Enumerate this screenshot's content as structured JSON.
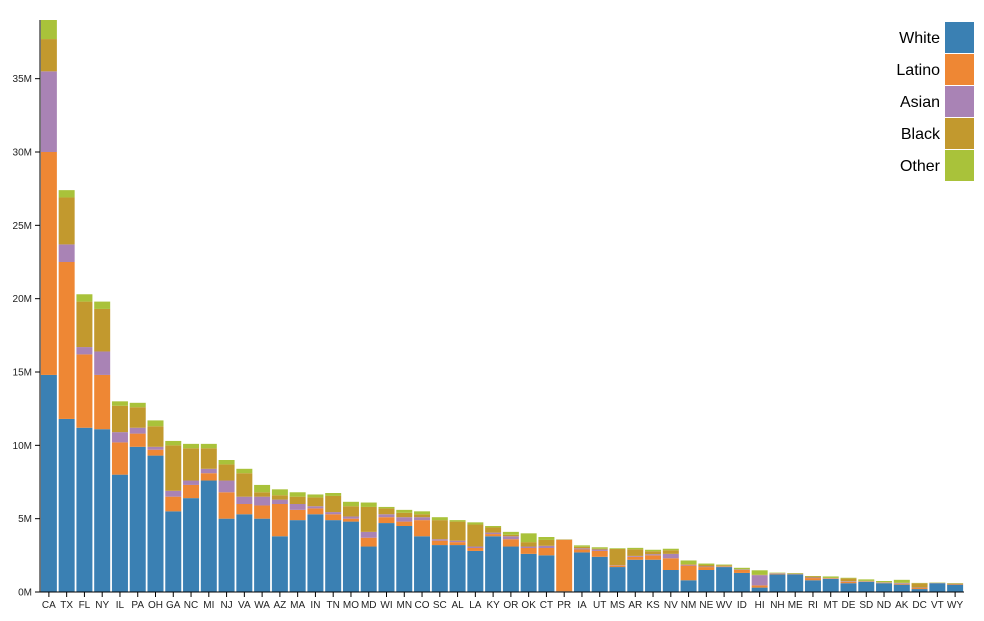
{
  "chart_data": {
    "type": "bar",
    "stacked": true,
    "title": "",
    "xlabel": "",
    "ylabel": "",
    "ylim": [
      0,
      39000000
    ],
    "y_ticks": [
      0,
      5000000,
      10000000,
      15000000,
      20000000,
      25000000,
      30000000,
      35000000
    ],
    "y_tick_labels": [
      "0M",
      "5M",
      "10M",
      "15M",
      "20M",
      "25M",
      "30M",
      "35M"
    ],
    "grid": false,
    "legend_position": "top-right",
    "categories": [
      "CA",
      "TX",
      "FL",
      "NY",
      "IL",
      "PA",
      "OH",
      "GA",
      "NC",
      "MI",
      "NJ",
      "VA",
      "WA",
      "AZ",
      "MA",
      "IN",
      "TN",
      "MO",
      "MD",
      "WI",
      "MN",
      "CO",
      "SC",
      "AL",
      "LA",
      "KY",
      "OR",
      "OK",
      "CT",
      "PR",
      "IA",
      "UT",
      "MS",
      "AR",
      "KS",
      "NV",
      "NM",
      "NE",
      "WV",
      "ID",
      "HI",
      "NH",
      "ME",
      "RI",
      "MT",
      "DE",
      "SD",
      "ND",
      "AK",
      "DC",
      "VT",
      "WY"
    ],
    "series": [
      {
        "name": "White",
        "color": "#3a80b3",
        "values": [
          14800000,
          11800000,
          11200000,
          11100000,
          8000000,
          9900000,
          9300000,
          5500000,
          6400000,
          7600000,
          5000000,
          5300000,
          5000000,
          3800000,
          4900000,
          5300000,
          4900000,
          4800000,
          3100000,
          4700000,
          4500000,
          3800000,
          3200000,
          3200000,
          2800000,
          3800000,
          3100000,
          2600000,
          2500000,
          50000,
          2700000,
          2400000,
          1700000,
          2200000,
          2200000,
          1500000,
          800000,
          1500000,
          1700000,
          1300000,
          300000,
          1200000,
          1200000,
          800000,
          900000,
          600000,
          700000,
          600000,
          500000,
          200000,
          600000,
          500000
        ]
      },
      {
        "name": "Latino",
        "color": "#ee8734",
        "values": [
          15200000,
          10700000,
          5000000,
          3700000,
          2200000,
          900000,
          400000,
          1000000,
          900000,
          500000,
          1800000,
          700000,
          900000,
          2200000,
          700000,
          400000,
          400000,
          200000,
          600000,
          400000,
          300000,
          1100000,
          300000,
          200000,
          200000,
          150000,
          500000,
          400000,
          500000,
          3500000,
          200000,
          400000,
          100000,
          200000,
          300000,
          800000,
          1000000,
          200000,
          30000,
          200000,
          150000,
          40000,
          20000,
          150000,
          40000,
          90000,
          30000,
          30000,
          50000,
          70000,
          10000,
          60000
        ]
      },
      {
        "name": "Asian",
        "color": "#a983b5",
        "values": [
          5500000,
          1200000,
          500000,
          1600000,
          700000,
          400000,
          200000,
          400000,
          300000,
          300000,
          800000,
          500000,
          600000,
          300000,
          400000,
          150000,
          150000,
          150000,
          400000,
          200000,
          300000,
          200000,
          100000,
          100000,
          100000,
          100000,
          200000,
          100000,
          150000,
          10000,
          80000,
          100000,
          30000,
          60000,
          80000,
          300000,
          50000,
          40000,
          20000,
          30000,
          700000,
          30000,
          20000,
          40000,
          10000,
          40000,
          10000,
          20000,
          50000,
          30000,
          10000,
          10000
        ]
      },
      {
        "name": "Black",
        "color": "#c2992e",
        "values": [
          2200000,
          3200000,
          3100000,
          2900000,
          1800000,
          1400000,
          1400000,
          3100000,
          2200000,
          1400000,
          1100000,
          1600000,
          300000,
          300000,
          500000,
          600000,
          1100000,
          700000,
          1700000,
          400000,
          300000,
          200000,
          1300000,
          1300000,
          1500000,
          350000,
          100000,
          300000,
          400000,
          20000,
          100000,
          50000,
          1100000,
          450000,
          200000,
          250000,
          50000,
          100000,
          70000,
          20000,
          30000,
          20000,
          20000,
          70000,
          10000,
          200000,
          20000,
          20000,
          30000,
          300000,
          10000,
          10000
        ]
      },
      {
        "name": "Other",
        "color": "#a9c23a",
        "values": [
          1300000,
          500000,
          500000,
          500000,
          300000,
          300000,
          400000,
          300000,
          300000,
          300000,
          300000,
          300000,
          500000,
          400000,
          300000,
          200000,
          200000,
          300000,
          300000,
          100000,
          200000,
          200000,
          200000,
          100000,
          150000,
          100000,
          200000,
          600000,
          200000,
          10000,
          100000,
          100000,
          50000,
          100000,
          100000,
          100000,
          250000,
          100000,
          50000,
          100000,
          300000,
          30000,
          30000,
          30000,
          100000,
          40000,
          100000,
          80000,
          200000,
          20000,
          20000,
          30000
        ]
      }
    ]
  }
}
